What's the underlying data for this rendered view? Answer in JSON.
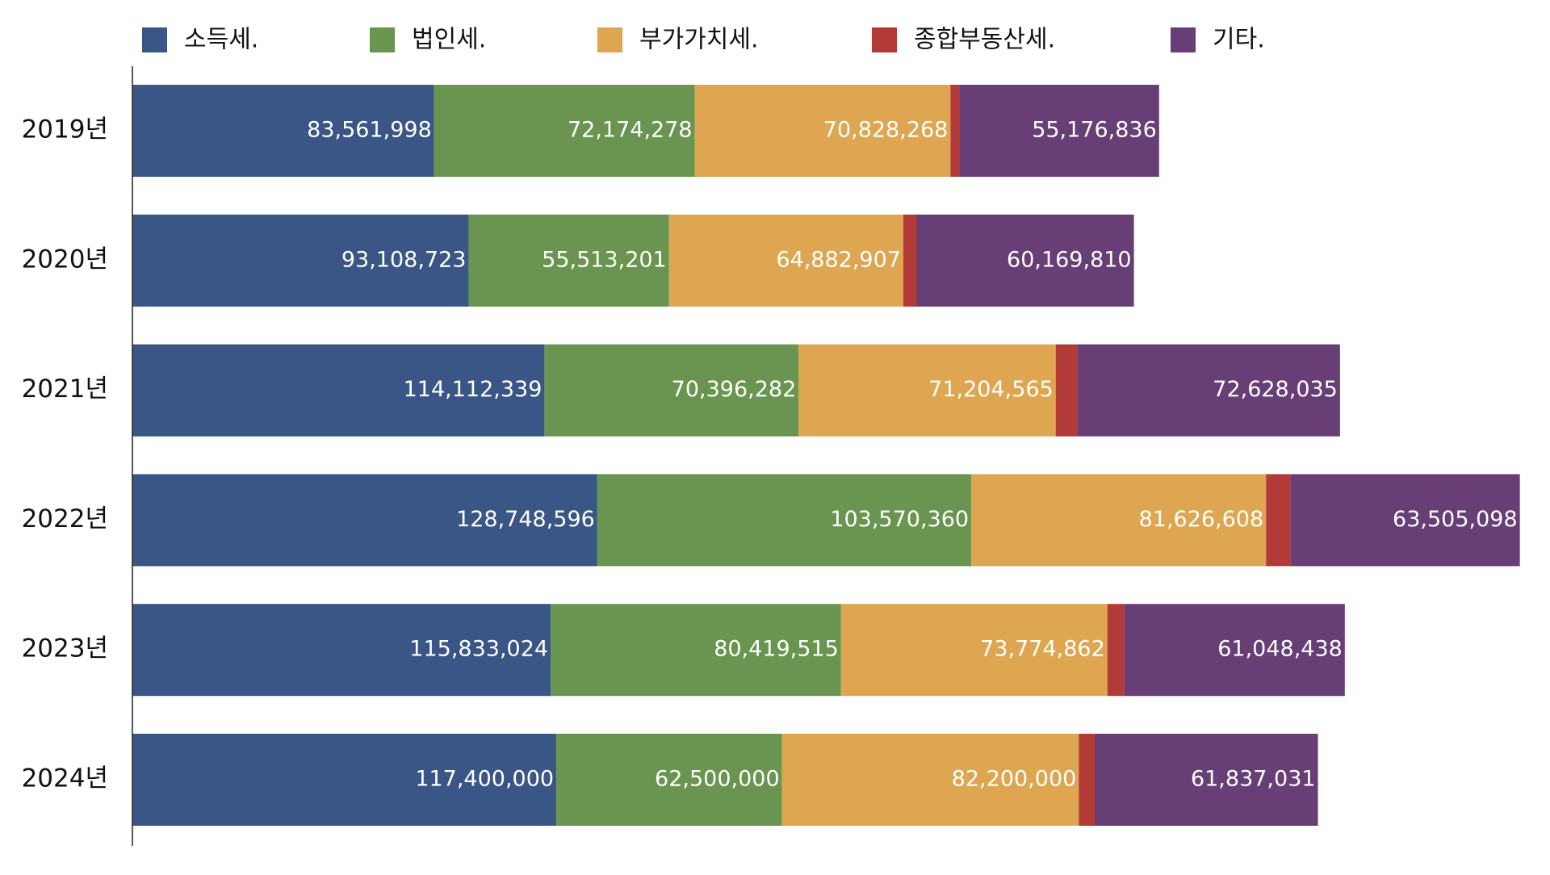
{
  "chart_data": {
    "type": "bar",
    "orientation": "horizontal",
    "stacked": true,
    "categories": [
      "2019년",
      "2020년",
      "2021년",
      "2022년",
      "2023년",
      "2024년"
    ],
    "series": [
      {
        "name": "소득세.",
        "color": "#3a5687",
        "values": [
          83561998,
          93108723,
          114112339,
          128748596,
          115833024,
          117400000
        ]
      },
      {
        "name": "법인세.",
        "color": "#6a9550",
        "values": [
          72174278,
          55513201,
          70396282,
          103570360,
          80419515,
          62500000
        ]
      },
      {
        "name": "부가가치세.",
        "color": "#dea651",
        "values": [
          70828268,
          64882907,
          71204565,
          81626608,
          73774862,
          82200000
        ]
      },
      {
        "name": "종합부동산세.",
        "color": "#b23b37",
        "values": [
          2600000,
          3700000,
          6100000,
          6800000,
          4700000,
          4400000
        ],
        "show_labels": false
      },
      {
        "name": "기타.",
        "color": "#683e77",
        "values": [
          55176836,
          60169810,
          72628035,
          63505098,
          61048438,
          61837031
        ]
      }
    ],
    "xlim": [
      0,
      385000000
    ],
    "grid": false,
    "legend_position": "top"
  }
}
